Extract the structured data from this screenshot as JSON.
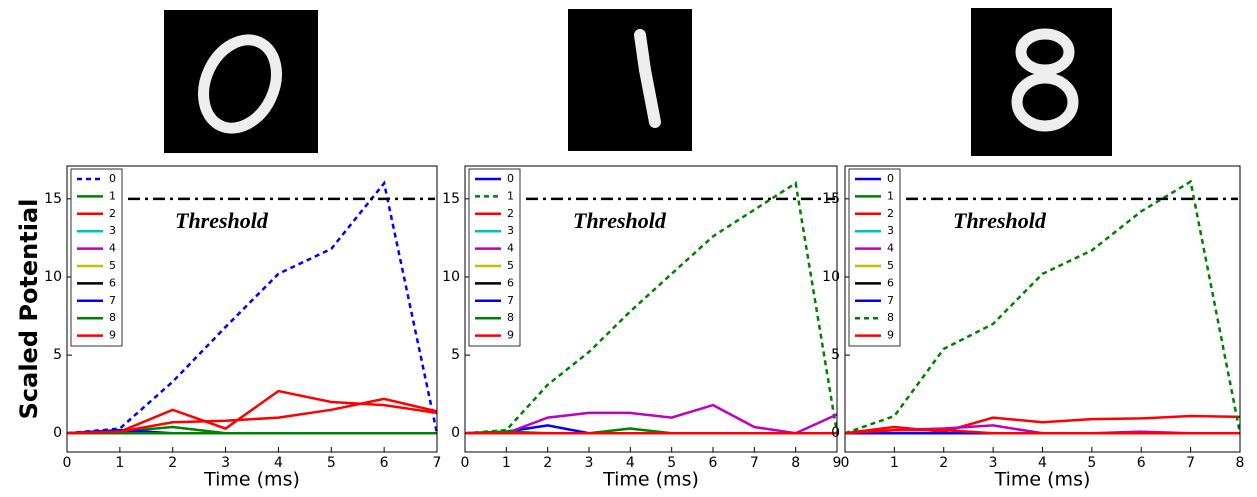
{
  "chart_data": [
    {
      "type": "line",
      "xlabel": "Time (ms)",
      "ylabel": "Scaled Potential",
      "annotation": "Threshold",
      "threshold": 15,
      "x": [
        0,
        1,
        2,
        3,
        4,
        5,
        6,
        7
      ],
      "xlim": [
        0,
        7
      ],
      "xticks": [
        0,
        1,
        2,
        3,
        4,
        5,
        6,
        7
      ],
      "ylim": [
        -1.2,
        17.1
      ],
      "yticks": [
        0,
        5,
        10,
        15
      ],
      "legend": "upper left",
      "series": [
        {
          "name": "0",
          "color": "#0000ff",
          "dashed": true,
          "values": [
            0,
            0.3,
            3.3,
            6.8,
            10.2,
            11.8,
            16,
            0
          ]
        },
        {
          "name": "1",
          "color": "#008000",
          "values": [
            0,
            0.1,
            0.4,
            0,
            0,
            0,
            0,
            0
          ]
        },
        {
          "name": "2",
          "color": "#ff0000",
          "values": [
            0,
            0.1,
            1.5,
            0.3,
            2.7,
            2.0,
            1.8,
            1.3
          ]
        },
        {
          "name": "3",
          "color": "#00bfbf",
          "values": [
            0,
            0,
            0,
            0,
            0,
            0,
            0,
            0
          ]
        },
        {
          "name": "4",
          "color": "#bf00bf",
          "values": [
            0,
            0,
            0,
            0,
            0,
            0,
            0,
            0
          ]
        },
        {
          "name": "5",
          "color": "#bfbf00",
          "values": [
            0,
            0,
            0,
            0,
            0,
            0,
            0,
            0
          ]
        },
        {
          "name": "6",
          "color": "#000000",
          "values": [
            0,
            0,
            0,
            0,
            0,
            0,
            0,
            0
          ]
        },
        {
          "name": "7",
          "color": "#0000ff",
          "values": [
            0,
            0.2,
            0,
            0,
            0,
            0,
            0,
            0
          ]
        },
        {
          "name": "8",
          "color": "#008000",
          "values": [
            0,
            0,
            0,
            0,
            0,
            0,
            0,
            0
          ]
        },
        {
          "name": "9",
          "color": "#ff0000",
          "values": [
            0,
            0.1,
            0.7,
            0.8,
            1.0,
            1.5,
            2.2,
            1.4
          ]
        }
      ]
    },
    {
      "type": "line",
      "xlabel": "Time (ms)",
      "annotation": "Threshold",
      "threshold": 15,
      "x": [
        0,
        1,
        2,
        3,
        4,
        5,
        6,
        7,
        8,
        9
      ],
      "xlim": [
        0,
        9
      ],
      "xticks": [
        0,
        1,
        2,
        3,
        4,
        5,
        6,
        7,
        8,
        9
      ],
      "ylim": [
        -1.2,
        17.1
      ],
      "yticks": [
        0,
        5,
        10,
        15
      ],
      "legend": "upper left",
      "series": [
        {
          "name": "0",
          "color": "#0000ff",
          "values": [
            0,
            0.1,
            0.5,
            0,
            0,
            0,
            0,
            0,
            0,
            0
          ]
        },
        {
          "name": "1",
          "color": "#008000",
          "dashed": true,
          "values": [
            0,
            0.2,
            3.1,
            5.2,
            7.8,
            10.2,
            12.6,
            14.3,
            16,
            0
          ]
        },
        {
          "name": "2",
          "color": "#ff0000",
          "values": [
            0,
            0,
            0,
            0,
            0,
            0,
            0,
            0,
            0,
            0
          ]
        },
        {
          "name": "3",
          "color": "#00bfbf",
          "values": [
            0,
            0,
            0,
            0,
            0,
            0,
            0,
            0,
            0,
            0
          ]
        },
        {
          "name": "4",
          "color": "#bf00bf",
          "values": [
            0,
            0,
            1.0,
            1.3,
            1.3,
            1.0,
            1.8,
            0.4,
            0,
            1.2
          ]
        },
        {
          "name": "5",
          "color": "#bfbf00",
          "values": [
            0,
            0,
            0,
            0,
            0,
            0,
            0,
            0,
            0,
            0
          ]
        },
        {
          "name": "6",
          "color": "#000000",
          "values": [
            0,
            0,
            0,
            0,
            0,
            0,
            0,
            0,
            0,
            0
          ]
        },
        {
          "name": "7",
          "color": "#0000ff",
          "values": [
            0,
            0,
            0,
            0,
            0,
            0,
            0,
            0,
            0,
            0
          ]
        },
        {
          "name": "8",
          "color": "#008000",
          "values": [
            0,
            0.1,
            0,
            0,
            0.3,
            0,
            0,
            0,
            0,
            0
          ]
        },
        {
          "name": "9",
          "color": "#ff0000",
          "values": [
            0,
            0,
            0,
            0,
            0,
            0,
            0,
            0,
            0,
            0
          ]
        }
      ]
    },
    {
      "type": "line",
      "xlabel": "Time (ms)",
      "annotation": "Threshold",
      "threshold": 15,
      "x": [
        0,
        1,
        2,
        3,
        4,
        5,
        6,
        7,
        8
      ],
      "xlim": [
        0,
        8
      ],
      "xticks": [
        0,
        1,
        2,
        3,
        4,
        5,
        6,
        7,
        8
      ],
      "ylim": [
        -1.2,
        17.1
      ],
      "yticks": [
        0,
        5,
        10,
        15
      ],
      "legend": "upper left",
      "series": [
        {
          "name": "0",
          "color": "#0000ff",
          "values": [
            0,
            0,
            0,
            0,
            0,
            0,
            0,
            0,
            0
          ]
        },
        {
          "name": "1",
          "color": "#008000",
          "values": [
            0,
            0,
            0,
            0,
            0,
            0,
            0,
            0,
            0
          ]
        },
        {
          "name": "2",
          "color": "#ff0000",
          "values": [
            0,
            0.4,
            0.1,
            1.0,
            0.7,
            0.9,
            0.95,
            1.1,
            1.05
          ]
        },
        {
          "name": "3",
          "color": "#00bfbf",
          "values": [
            0,
            0,
            0,
            0,
            0,
            0,
            0,
            0,
            0
          ]
        },
        {
          "name": "4",
          "color": "#bf00bf",
          "values": [
            0,
            0.2,
            0.3,
            0.5,
            0,
            0,
            0.1,
            0,
            0
          ]
        },
        {
          "name": "5",
          "color": "#bfbf00",
          "values": [
            0,
            0,
            0,
            0,
            0,
            0,
            0,
            0,
            0
          ]
        },
        {
          "name": "6",
          "color": "#000000",
          "values": [
            0,
            0,
            0,
            0,
            0,
            0,
            0,
            0,
            0
          ]
        },
        {
          "name": "7",
          "color": "#0000ff",
          "values": [
            0,
            0,
            0,
            0,
            0,
            0,
            0,
            0,
            0
          ]
        },
        {
          "name": "8",
          "color": "#008000",
          "dashed": true,
          "values": [
            0,
            1.1,
            5.4,
            7.0,
            10.2,
            11.7,
            14.2,
            16.1,
            0
          ]
        },
        {
          "name": "9",
          "color": "#ff0000",
          "values": [
            0,
            0.2,
            0.2,
            0,
            0,
            0,
            0,
            0,
            0
          ]
        }
      ]
    }
  ]
}
